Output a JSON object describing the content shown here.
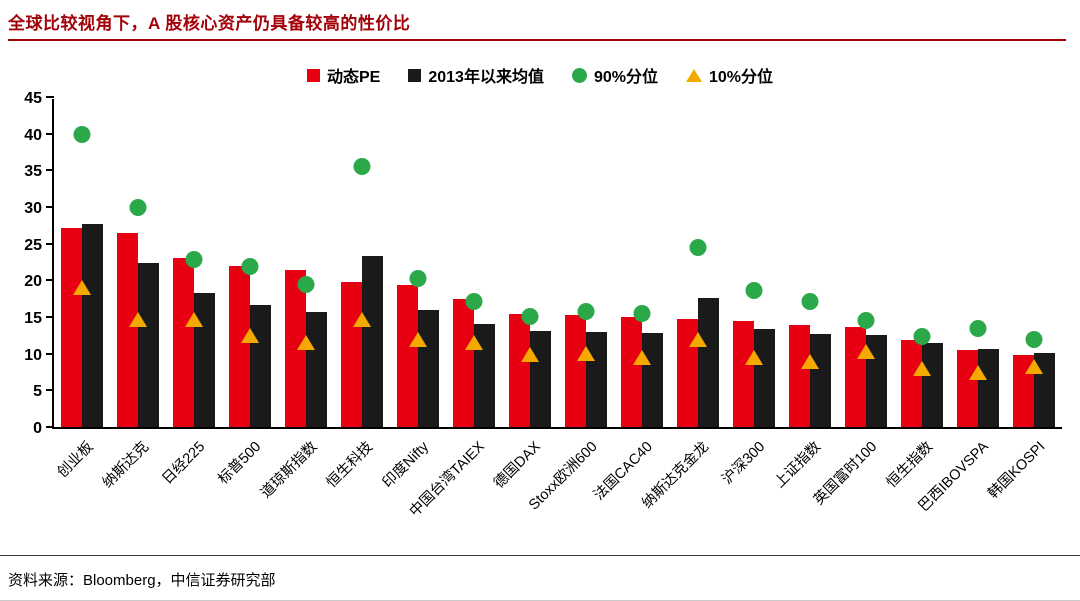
{
  "source_note": "资料来源：Bloomberg，中信证券研究部",
  "chart_data": {
    "type": "bar",
    "title": "全球比较视角下，A 股核心资产仍具备较高的性价比",
    "xlabel": "",
    "ylabel": "",
    "ylim": [
      0,
      45
    ],
    "yticks": [
      0,
      5,
      10,
      15,
      20,
      25,
      30,
      35,
      40,
      45
    ],
    "grid": false,
    "legend_position": "top",
    "categories": [
      "创业板",
      "纳斯达克",
      "日经225",
      "标普500",
      "道琼斯指数",
      "恒生科技",
      "印度Nifty",
      "中国台湾TAIEX",
      "德国DAX",
      "Stoxx欧洲600",
      "法国CAC40",
      "纳斯达克金龙",
      "沪深300",
      "上证指数",
      "英国富时100",
      "恒生指数",
      "巴西IBOVSPA",
      "韩国KOSPI"
    ],
    "series": [
      {
        "name": "动态PE",
        "type": "bar",
        "color": "#e60012",
        "values": [
          27.2,
          26.5,
          23.0,
          21.9,
          21.4,
          19.8,
          19.3,
          17.5,
          15.4,
          15.3,
          15.0,
          14.7,
          14.5,
          13.9,
          13.7,
          11.9,
          10.5,
          9.8
        ]
      },
      {
        "name": "2013年以来均值",
        "type": "bar",
        "color": "#1a1a1a",
        "values": [
          27.7,
          22.4,
          18.3,
          16.7,
          15.7,
          23.3,
          16.0,
          14.0,
          13.1,
          13.0,
          12.8,
          17.6,
          13.4,
          12.7,
          12.6,
          11.5,
          10.7,
          10.1
        ]
      },
      {
        "name": "90%分位",
        "type": "scatter-circle",
        "color": "#2ba84a",
        "values": [
          39.9,
          30.0,
          22.8,
          21.9,
          19.5,
          35.5,
          20.3,
          17.1,
          15.1,
          15.7,
          15.5,
          24.5,
          18.6,
          17.1,
          14.5,
          12.3,
          13.4,
          12.0
        ]
      },
      {
        "name": "10%分位",
        "type": "scatter-triangle",
        "color": "#f5a800",
        "values": [
          19.0,
          14.6,
          14.6,
          12.5,
          11.5,
          14.6,
          12.0,
          11.5,
          9.9,
          10.0,
          9.5,
          11.9,
          9.5,
          9.0,
          10.3,
          8.0,
          7.5,
          8.2
        ]
      }
    ]
  }
}
